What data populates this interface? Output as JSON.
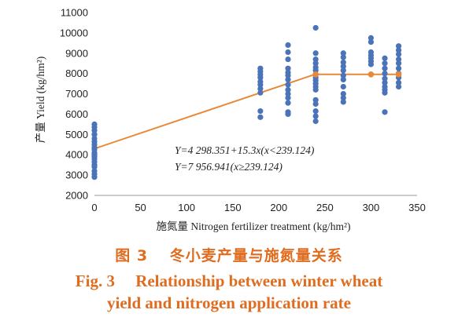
{
  "colors": {
    "points": "#4a73b8",
    "fit_line": "#e8893a",
    "caption": "#e06c1f",
    "background": "#ffffff"
  },
  "caption": {
    "cn": "图 3　 冬小麦产量与施氮量关系",
    "en_line1": "Fig. 3　 Relationship between winter wheat",
    "en_line2": "yield and nitrogen application rate"
  },
  "chart_data": {
    "type": "scatter",
    "title": "",
    "xlabel": "施氮量 Nitrogen fertilizer treatment (kg/hm²)",
    "ylabel": "产量 Yield (kg/hm²)",
    "xlim": [
      0,
      350
    ],
    "ylim": [
      2000,
      11000
    ],
    "x_ticks": [
      0,
      50,
      100,
      150,
      200,
      250,
      300,
      350
    ],
    "y_ticks": [
      2000,
      3000,
      4000,
      5000,
      6000,
      7000,
      8000,
      9000,
      10000,
      11000
    ],
    "grid": false,
    "legend": "none",
    "series": [
      {
        "kind": "points",
        "points": [
          [
            0,
            5500
          ],
          [
            0,
            5350
          ],
          [
            0,
            5200
          ],
          [
            0,
            5000
          ],
          [
            0,
            4800
          ],
          [
            0,
            4650
          ],
          [
            0,
            4500
          ],
          [
            0,
            4350
          ],
          [
            0,
            4250
          ],
          [
            0,
            4100
          ],
          [
            0,
            4000
          ],
          [
            0,
            3900
          ],
          [
            0,
            3800
          ],
          [
            0,
            3650
          ],
          [
            0,
            3500
          ],
          [
            0,
            3400
          ],
          [
            0,
            3200
          ],
          [
            0,
            3050
          ],
          [
            0,
            2900
          ],
          [
            180,
            8250
          ],
          [
            180,
            8100
          ],
          [
            180,
            7950
          ],
          [
            180,
            7800
          ],
          [
            180,
            7600
          ],
          [
            180,
            7450
          ],
          [
            180,
            7250
          ],
          [
            180,
            7050
          ],
          [
            180,
            6150
          ],
          [
            180,
            5850
          ],
          [
            210,
            9400
          ],
          [
            210,
            9050
          ],
          [
            210,
            8700
          ],
          [
            210,
            8250
          ],
          [
            210,
            8050
          ],
          [
            210,
            7900
          ],
          [
            210,
            7700
          ],
          [
            210,
            7450
          ],
          [
            210,
            7200
          ],
          [
            210,
            7000
          ],
          [
            210,
            6800
          ],
          [
            210,
            6550
          ],
          [
            210,
            6100
          ],
          [
            210,
            6000
          ],
          [
            240,
            10250
          ],
          [
            240,
            9000
          ],
          [
            240,
            8700
          ],
          [
            240,
            8500
          ],
          [
            240,
            8300
          ],
          [
            240,
            8150
          ],
          [
            240,
            7950
          ],
          [
            240,
            7800
          ],
          [
            240,
            7650
          ],
          [
            240,
            7500
          ],
          [
            240,
            7350
          ],
          [
            240,
            7200
          ],
          [
            240,
            6700
          ],
          [
            240,
            6500
          ],
          [
            240,
            6150
          ],
          [
            240,
            5900
          ],
          [
            240,
            5650
          ],
          [
            270,
            9000
          ],
          [
            270,
            8800
          ],
          [
            270,
            8550
          ],
          [
            270,
            8350
          ],
          [
            270,
            8150
          ],
          [
            270,
            7900
          ],
          [
            270,
            7700
          ],
          [
            270,
            7350
          ],
          [
            270,
            7000
          ],
          [
            270,
            6800
          ],
          [
            270,
            6600
          ],
          [
            300,
            9750
          ],
          [
            300,
            9550
          ],
          [
            300,
            9050
          ],
          [
            300,
            8900
          ],
          [
            300,
            8750
          ],
          [
            300,
            8600
          ],
          [
            300,
            8450
          ],
          [
            315,
            8750
          ],
          [
            315,
            8500
          ],
          [
            315,
            8250
          ],
          [
            315,
            8000
          ],
          [
            315,
            7750
          ],
          [
            315,
            7550
          ],
          [
            315,
            7350
          ],
          [
            315,
            7200
          ],
          [
            315,
            7050
          ],
          [
            315,
            6100
          ],
          [
            330,
            9350
          ],
          [
            330,
            9150
          ],
          [
            330,
            8950
          ],
          [
            330,
            8700
          ],
          [
            330,
            8500
          ],
          [
            330,
            8250
          ],
          [
            330,
            8000
          ],
          [
            330,
            7800
          ],
          [
            330,
            7550
          ],
          [
            330,
            7350
          ]
        ]
      },
      {
        "kind": "fit",
        "line": [
          [
            0,
            4298.351
          ],
          [
            239.124,
            7956.941
          ],
          [
            330,
            7956.941
          ]
        ],
        "markers": [
          [
            240,
            7956.941
          ],
          [
            300,
            7956.941
          ],
          [
            330,
            7956.941
          ]
        ]
      }
    ],
    "annotations": [
      "Y=4 298.351+15.3x(x<239.124)",
      "Y=7 956.941(x≥239.124)"
    ]
  }
}
